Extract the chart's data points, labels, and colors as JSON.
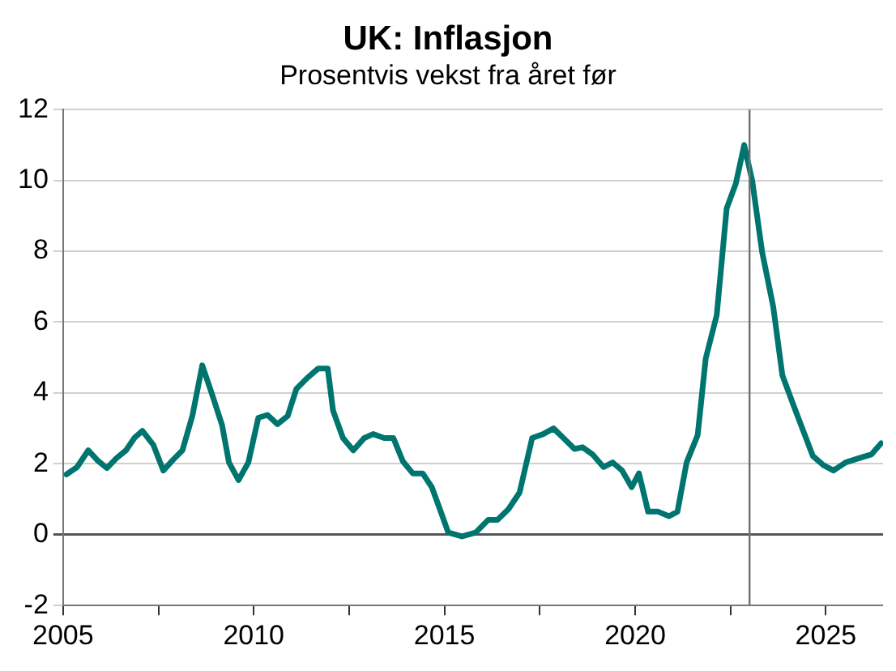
{
  "chart_data": {
    "type": "line",
    "title": "UK: Inflasjon",
    "subtitle": "Prosentvis vekst fra året før",
    "x": [
      2005.09,
      2005.37,
      2005.66,
      2005.9,
      2006.15,
      2006.4,
      2006.65,
      2006.87,
      2007.08,
      2007.37,
      2007.63,
      2007.89,
      2008.13,
      2008.39,
      2008.65,
      2008.92,
      2009.17,
      2009.35,
      2009.6,
      2009.86,
      2010.12,
      2010.36,
      2010.62,
      2010.89,
      2011.12,
      2011.41,
      2011.69,
      2011.94,
      2012.08,
      2012.34,
      2012.61,
      2012.9,
      2013.13,
      2013.42,
      2013.66,
      2013.91,
      2014.17,
      2014.43,
      2014.67,
      2014.88,
      2015.1,
      2015.46,
      2015.82,
      2016.15,
      2016.39,
      2016.68,
      2016.97,
      2017.3,
      2017.59,
      2017.86,
      2018.12,
      2018.41,
      2018.62,
      2018.88,
      2019.17,
      2019.41,
      2019.66,
      2019.91,
      2020.1,
      2020.34,
      2020.6,
      2020.89,
      2021.11,
      2021.35,
      2021.64,
      2021.85,
      2022.14,
      2022.4,
      2022.64,
      2022.86,
      2023.07,
      2023.33,
      2023.62,
      2023.86,
      2024.15,
      2024.37,
      2024.66,
      2024.94,
      2025.2,
      2025.52,
      2025.87,
      2026.2,
      2026.45
    ],
    "series": [
      {
        "color": "#00756f",
        "values": [
          1.7,
          1.91,
          2.38,
          2.1,
          1.88,
          2.16,
          2.38,
          2.73,
          2.93,
          2.53,
          1.81,
          2.12,
          2.38,
          3.35,
          4.78,
          3.92,
          3.09,
          2.04,
          1.54,
          2.04,
          3.3,
          3.38,
          3.12,
          3.35,
          4.12,
          4.43,
          4.69,
          4.69,
          3.5,
          2.73,
          2.38,
          2.73,
          2.84,
          2.73,
          2.73,
          2.07,
          1.73,
          1.73,
          1.34,
          0.72,
          0.06,
          -0.05,
          0.06,
          0.42,
          0.42,
          0.72,
          1.19,
          2.73,
          2.84,
          3.0,
          2.73,
          2.42,
          2.47,
          2.27,
          1.91,
          2.04,
          1.81,
          1.34,
          1.73,
          0.65,
          0.65,
          0.52,
          0.65,
          2.04,
          2.81,
          4.97,
          6.2,
          9.21,
          9.91,
          11.0,
          9.99,
          7.98,
          6.44,
          4.5,
          3.66,
          3.04,
          2.22,
          1.96,
          1.81,
          2.04,
          2.16,
          2.27,
          2.58
        ]
      }
    ],
    "xlim": [
      2005,
      2026.5
    ],
    "xticks": [
      2005,
      {
        "value": 2007.5,
        "label": null
      },
      2010,
      {
        "value": 2012.5,
        "label": null
      },
      2015,
      {
        "value": 2017.5,
        "label": null
      },
      2020,
      {
        "value": 2022.5,
        "label": null
      },
      2025
    ],
    "ylim": [
      -2,
      12
    ],
    "yticks": [
      -2,
      0,
      2,
      4,
      6,
      8,
      10,
      12
    ],
    "grid": "y",
    "legend": false,
    "marker": "none",
    "line_style": "solid",
    "ref_lines": [
      {
        "axis": "x",
        "value": 2023,
        "color": "#707070"
      }
    ]
  }
}
